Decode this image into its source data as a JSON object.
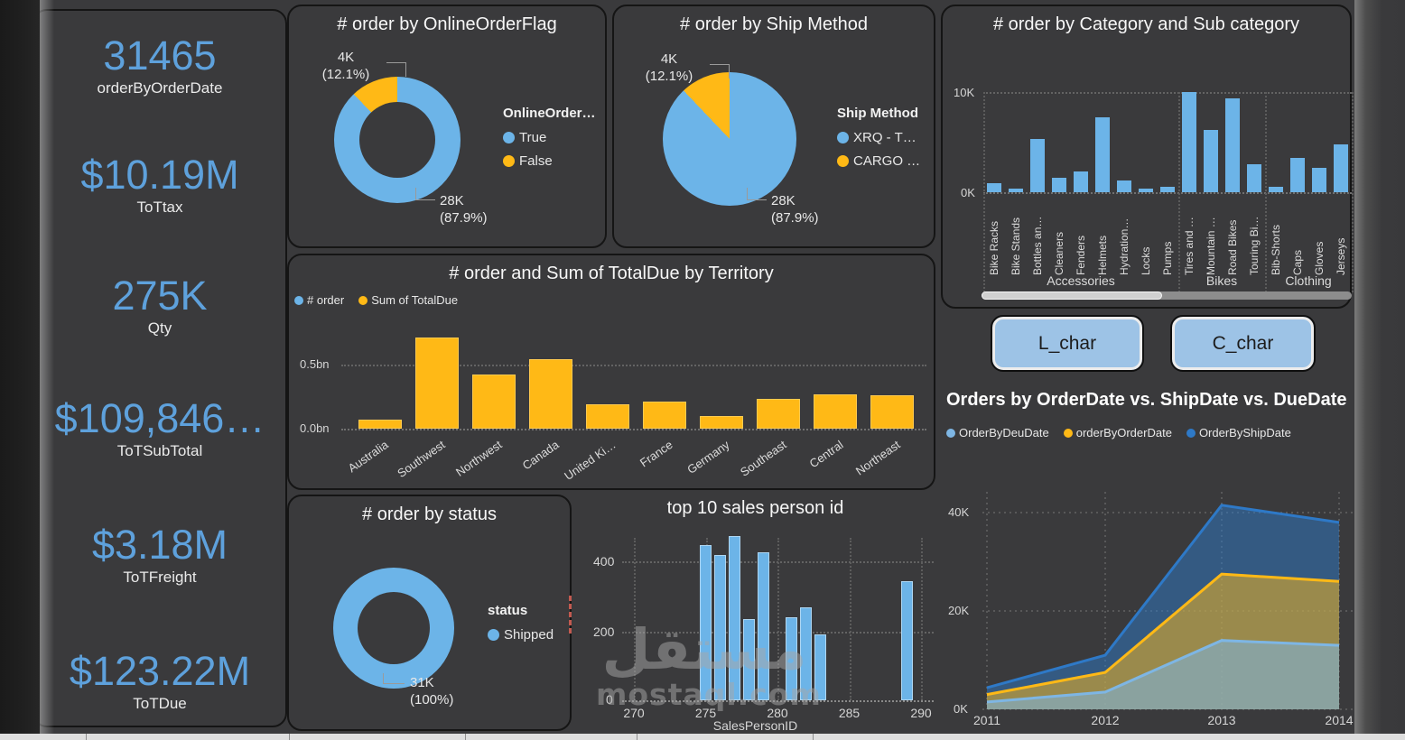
{
  "theme": {
    "background": "#3A3A3C",
    "card_border": "#151515",
    "kpi_blue": "#5EA1DC",
    "bar_blue": "#6CB4E8",
    "bar_yellow": "#FFB916",
    "ship_blue": "#2E79C7",
    "light_blue": "#7EB6E4",
    "button_fill": "#9DC3E6",
    "text": "#F2F2F2",
    "axis_text": "#D6D6D6"
  },
  "kpis": [
    {
      "value": "31465",
      "label": "orderByOrderDate"
    },
    {
      "value": "$10.19M",
      "label": "ToTtax"
    },
    {
      "value": "275K",
      "label": "Qty"
    },
    {
      "value": "$109,846…",
      "label": "ToTSubTotal"
    },
    {
      "value": "$3.18M",
      "label": "ToTFreight"
    },
    {
      "value": "$123.22M",
      "label": "ToTDue"
    }
  ],
  "buttons": {
    "labels": [
      "L_char",
      "C_char"
    ]
  },
  "watermark": {
    "arabic": "مستقل",
    "latin": "mostaql.com"
  },
  "chart_data": [
    {
      "id": "online_order_flag",
      "type": "pie",
      "subtype": "donut",
      "title": "# order by OnlineOrderFlag",
      "legend_title": "OnlineOrder…",
      "legend_position": "right",
      "legend": [
        {
          "label": "True",
          "color": "#6CB4E8"
        },
        {
          "label": "False",
          "color": "#FFB916"
        }
      ],
      "slices": [
        {
          "label": "True",
          "value_k": 28,
          "pct": 87.9,
          "color": "#6CB4E8"
        },
        {
          "label": "False",
          "value_k": 4,
          "pct": 12.1,
          "color": "#FFB916"
        }
      ],
      "callouts": {
        "small_line1": "4K",
        "small_line2": "(12.1%)",
        "big_line1": "28K",
        "big_line2": "(87.9%)"
      }
    },
    {
      "id": "ship_method",
      "type": "pie",
      "subtype": "pie",
      "title": "# order by Ship Method",
      "legend_title": "Ship Method",
      "legend_position": "right",
      "legend": [
        {
          "label": "XRQ - T…",
          "color": "#6CB4E8"
        },
        {
          "label": "CARGO …",
          "color": "#FFB916"
        }
      ],
      "slices": [
        {
          "label": "XRQ - T…",
          "value_k": 28,
          "pct": 87.9,
          "color": "#6CB4E8"
        },
        {
          "label": "CARGO …",
          "value_k": 4,
          "pct": 12.1,
          "color": "#FFB916"
        }
      ],
      "callouts": {
        "small_line1": "4K",
        "small_line2": "(12.1%)",
        "big_line1": "28K",
        "big_line2": "(87.9%)"
      }
    },
    {
      "id": "category_subcategory",
      "type": "bar",
      "title": "# order by Category and Sub category",
      "ylabel": "",
      "xlabel": "",
      "ylim_k": [
        0,
        10
      ],
      "yticks": [
        "10K",
        "0K"
      ],
      "bar_color": "#6CB4E8",
      "groups": [
        {
          "name": "Accessories",
          "items": [
            {
              "label": "Bike Racks",
              "value_k": 0.9
            },
            {
              "label": "Bike Stands",
              "value_k": 0.35
            },
            {
              "label": "Bottles an…",
              "value_k": 5.3
            },
            {
              "label": "Cleaners",
              "value_k": 1.4
            },
            {
              "label": "Fenders",
              "value_k": 2.1
            },
            {
              "label": "Helmets",
              "value_k": 7.5
            },
            {
              "label": "Hydration…",
              "value_k": 1.2
            },
            {
              "label": "Locks",
              "value_k": 0.4
            },
            {
              "label": "Pumps",
              "value_k": 0.5
            }
          ]
        },
        {
          "name": "Bikes",
          "items": [
            {
              "label": "Tires and …",
              "value_k": 10
            },
            {
              "label": "Mountain …",
              "value_k": 6.2
            },
            {
              "label": "Road Bikes",
              "value_k": 9.4
            },
            {
              "label": "Touring Bi…",
              "value_k": 2.8
            }
          ]
        },
        {
          "name": "Clothing",
          "items": [
            {
              "label": "Bib-Shorts",
              "value_k": 0.5
            },
            {
              "label": "Caps",
              "value_k": 3.4
            },
            {
              "label": "Gloves",
              "value_k": 2.4
            },
            {
              "label": "Jerseys",
              "value_k": 4.8
            }
          ]
        }
      ],
      "has_scrollbar": true
    },
    {
      "id": "territory",
      "type": "bar",
      "title": "# order and Sum of TotalDue by Territory",
      "legend": [
        {
          "label": "# order",
          "color": "#6CB4E8"
        },
        {
          "label": "Sum of TotalDue",
          "color": "#FFB916"
        }
      ],
      "yticks": [
        "0.5bn",
        "0.0bn"
      ],
      "ylim_bn": [
        0,
        0.75
      ],
      "bar_color": "#FFB916",
      "categories": [
        "Australia",
        "Southwest",
        "Northwest",
        "Canada",
        "United Ki…",
        "France",
        "Germany",
        "Southeast",
        "Central",
        "Northeast"
      ],
      "values_bn": [
        0.07,
        0.71,
        0.42,
        0.54,
        0.19,
        0.21,
        0.1,
        0.23,
        0.27,
        0.26
      ],
      "note": "# order series not visible at billion scale"
    },
    {
      "id": "status",
      "type": "pie",
      "subtype": "donut",
      "title": "# order by status",
      "legend_title": "status",
      "legend": [
        {
          "label": "Shipped",
          "color": "#6CB4E8"
        }
      ],
      "slices": [
        {
          "label": "Shipped",
          "value_k": 31,
          "pct": 100,
          "color": "#6CB4E8"
        }
      ],
      "callouts": {
        "big_line1": "31K",
        "big_line2": "(100%)"
      }
    },
    {
      "id": "top10_salesperson",
      "type": "bar",
      "title": "top 10 sales person id",
      "xlabel": "SalesPersonID",
      "yticks": [
        "0",
        "200",
        "400"
      ],
      "xticks": [
        "270",
        "275",
        "280",
        "285",
        "290"
      ],
      "xlim": [
        270,
        291
      ],
      "ylim": [
        0,
        500
      ],
      "bar_color": "#6CB4E8",
      "bars": [
        {
          "id": 275,
          "value": 450
        },
        {
          "id": 276,
          "value": 420
        },
        {
          "id": 277,
          "value": 475
        },
        {
          "id": 278,
          "value": 235
        },
        {
          "id": 279,
          "value": 430
        },
        {
          "id": 281,
          "value": 240
        },
        {
          "id": 282,
          "value": 270
        },
        {
          "id": 283,
          "value": 190
        },
        {
          "id": 289,
          "value": 345
        }
      ]
    },
    {
      "id": "orders_by_dates",
      "type": "area",
      "title": "Orders by OrderDate vs. ShipDate vs. DueDate",
      "x": [
        2011,
        2012,
        2013,
        2014
      ],
      "xticks": [
        "2011",
        "2012",
        "2013",
        "2014"
      ],
      "yticks": [
        "0K",
        "20K",
        "40K"
      ],
      "ylim_k": [
        0,
        45
      ],
      "legend": [
        {
          "label": "OrderByDeuDate",
          "color": "#7EB6E4"
        },
        {
          "label": "orderByOrderDate",
          "color": "#FFB916"
        },
        {
          "label": "OrderByShipDate",
          "color": "#2E79C7"
        }
      ],
      "series": [
        {
          "name": "OrderByShipDate",
          "color": "#2E79C7",
          "fill_opacity": 0.5,
          "values_k": [
            4.4,
            11,
            41.5,
            38
          ]
        },
        {
          "name": "orderByOrderDate",
          "color": "#FFB916",
          "fill_opacity": 0.5,
          "values_k": [
            3,
            7.5,
            27.5,
            26
          ]
        },
        {
          "name": "OrderByDeuDate",
          "color": "#7EB6E4",
          "fill_opacity": 0.55,
          "values_k": [
            1.5,
            3.5,
            14,
            13
          ]
        }
      ]
    }
  ]
}
